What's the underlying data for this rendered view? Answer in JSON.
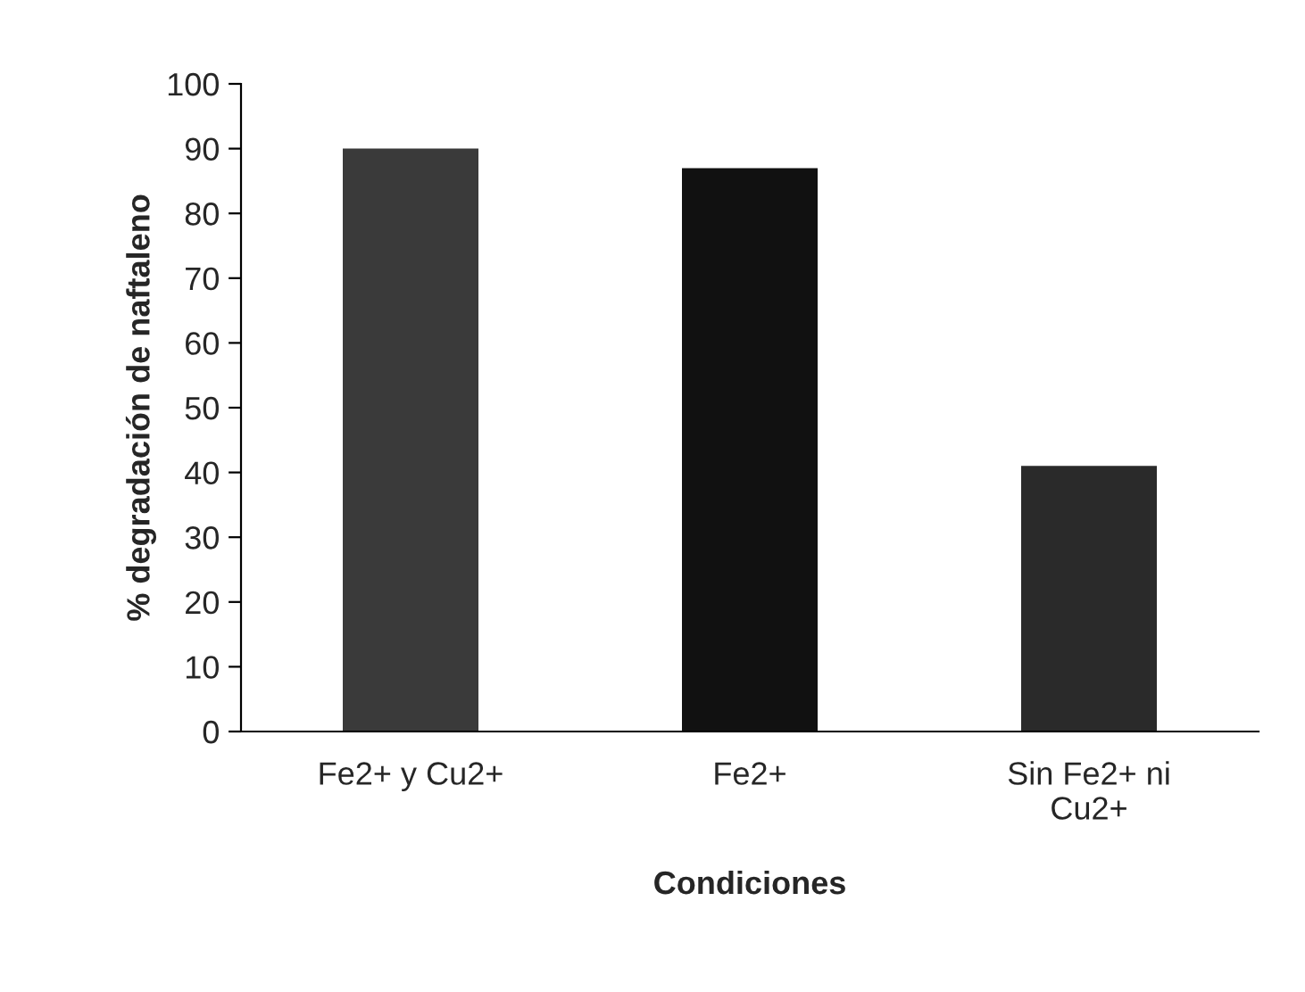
{
  "chart_data": {
    "type": "bar",
    "xlabel": "Condiciones",
    "ylabel": "% degradación de naftaleno",
    "categories": [
      "Fe2+ y Cu2+",
      "Fe2+",
      "Sin Fe2+ ni\nCu2+"
    ],
    "values": [
      90,
      87,
      41
    ],
    "colors": [
      "#3a3a3a",
      "#111111",
      "#2a2a2a"
    ],
    "ylim": [
      0,
      100
    ],
    "yticks": [
      0,
      10,
      20,
      30,
      40,
      50,
      60,
      70,
      80,
      90,
      100
    ],
    "grid": false,
    "legend": false
  }
}
